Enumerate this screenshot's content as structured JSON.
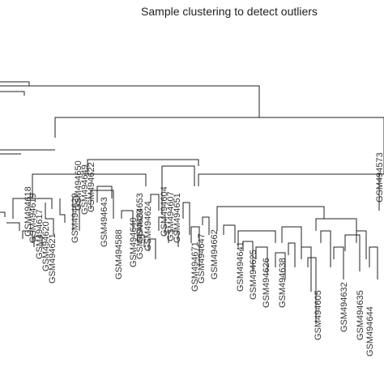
{
  "title": "Sample clustering to detect outliers",
  "leaf_labels": [
    "GSM494618",
    "GSM494619",
    "GSM494617",
    "GSM494620",
    "GSM494621",
    "GSM494650",
    "GSM494649",
    "GSM494622",
    "GSM494588",
    "GSM494640",
    "GSM494623",
    "GSM494604",
    "GSM494607",
    "GSM494651",
    "GSM494653",
    "GSM494624",
    "GSM494629",
    "GSM494643",
    "GSM494671",
    "GSM494647",
    "GSM494662",
    "GSM494641",
    "GSM494625",
    "GSM494626",
    "GSM494638",
    "GSM494605",
    "GSM494632",
    "GSM494635",
    "GSM494644",
    "GSM494573"
  ]
}
